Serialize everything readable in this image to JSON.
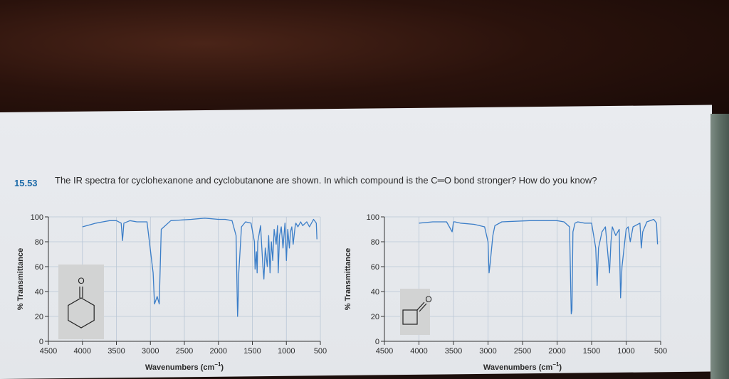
{
  "problem": {
    "number": "15.53",
    "text": "The IR spectra for cyclohexanone and cyclobutanone are shown. In which compound is the C═O bond stronger? How do you know?"
  },
  "chart_data": [
    {
      "type": "line",
      "molecule": "cyclohexanone",
      "atom_label": "O",
      "xlabel": "Wavenumbers (cm",
      "xlabel_sup": "−1",
      "xlabel_close": ")",
      "ylabel": "% Transmittance",
      "xlim": [
        4500,
        500
      ],
      "ylim": [
        0,
        100
      ],
      "x_ticks": [
        "4500",
        "4000",
        "3500",
        "3000",
        "2500",
        "2000",
        "1500",
        "1000",
        "500"
      ],
      "y_ticks": [
        "0",
        "20",
        "40",
        "60",
        "80",
        "100"
      ],
      "x": [
        4000,
        3800,
        3700,
        3600,
        3500,
        3430,
        3410,
        3390,
        3300,
        3200,
        3050,
        2960,
        2940,
        2900,
        2870,
        2860,
        2840,
        2700,
        2400,
        2200,
        2000,
        1900,
        1800,
        1740,
        1718,
        1712,
        1700,
        1660,
        1600,
        1520,
        1470,
        1460,
        1440,
        1430,
        1420,
        1380,
        1345,
        1330,
        1310,
        1280,
        1260,
        1240,
        1220,
        1200,
        1180,
        1150,
        1130,
        1120,
        1100,
        1075,
        1050,
        1020,
        1000,
        980,
        955,
        940,
        920,
        900,
        870,
        860,
        830,
        790,
        760,
        700,
        660,
        600,
        560,
        550
      ],
      "y": [
        92,
        95,
        96,
        97,
        97,
        95,
        81,
        95,
        97,
        96,
        96,
        55,
        30,
        36,
        30,
        50,
        90,
        97,
        98,
        99,
        98,
        98,
        97,
        85,
        20,
        28,
        55,
        92,
        96,
        95,
        80,
        58,
        72,
        55,
        80,
        93,
        60,
        50,
        75,
        60,
        85,
        55,
        80,
        65,
        90,
        78,
        93,
        55,
        85,
        92,
        75,
        95,
        65,
        90,
        75,
        88,
        92,
        78,
        93,
        95,
        92,
        96,
        93,
        96,
        92,
        98,
        95,
        82
      ]
    },
    {
      "type": "line",
      "molecule": "cyclobutanone",
      "atom_label": "O",
      "xlabel": "Wavenumbers (cm",
      "xlabel_sup": "−1",
      "xlabel_close": ")",
      "ylabel": "% Transmittance",
      "xlim": [
        4500,
        500
      ],
      "ylim": [
        0,
        100
      ],
      "x_ticks": [
        "4500",
        "4000",
        "3500",
        "3000",
        "2500",
        "2000",
        "1500",
        "1000",
        "500"
      ],
      "y_ticks": [
        "0",
        "20",
        "40",
        "60",
        "80",
        "100"
      ],
      "x": [
        4000,
        3800,
        3600,
        3520,
        3500,
        3480,
        3400,
        3200,
        3050,
        3000,
        2985,
        2970,
        2930,
        2900,
        2800,
        2400,
        2200,
        2000,
        1900,
        1820,
        1795,
        1785,
        1770,
        1740,
        1700,
        1600,
        1500,
        1440,
        1420,
        1400,
        1350,
        1300,
        1240,
        1220,
        1200,
        1150,
        1100,
        1080,
        1060,
        1000,
        970,
        940,
        900,
        800,
        780,
        760,
        700,
        600,
        560,
        545
      ],
      "y": [
        95,
        96,
        96,
        88,
        96,
        96,
        95,
        94,
        92,
        80,
        55,
        62,
        85,
        93,
        96,
        97,
        97,
        97,
        96,
        92,
        22,
        25,
        88,
        95,
        96,
        95,
        95,
        75,
        45,
        75,
        88,
        92,
        55,
        80,
        92,
        85,
        90,
        35,
        60,
        90,
        92,
        80,
        92,
        95,
        75,
        88,
        96,
        98,
        95,
        78
      ]
    }
  ]
}
